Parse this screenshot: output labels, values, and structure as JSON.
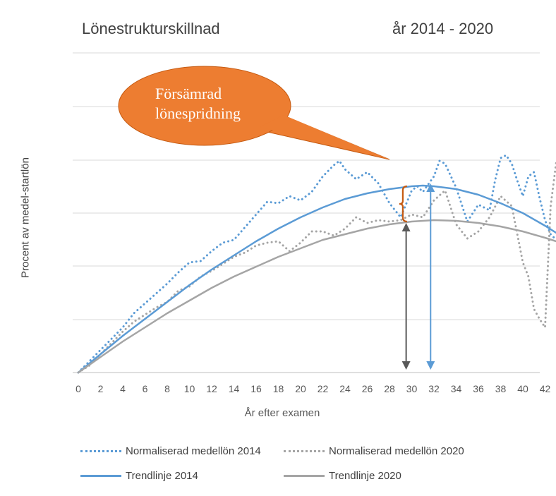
{
  "title_left": "Lönestrukturskillnad",
  "title_right": "år 2014 - 2020",
  "chart_data": {
    "type": "line",
    "xlabel": "År efter examen",
    "ylabel": "Procent av medel-startlön",
    "x_ticks": [
      0,
      2,
      4,
      6,
      8,
      10,
      12,
      14,
      16,
      18,
      20,
      22,
      24,
      26,
      28,
      30,
      32,
      34,
      36,
      38,
      40,
      42
    ],
    "xlim": [
      0,
      43
    ],
    "y_tick_labels": [],
    "grid": "horizontal",
    "legend_position": "bottom",
    "series": [
      {
        "name": "Normaliserad medellön 2014",
        "style": "dotted",
        "color": "#5b9bd5",
        "x": [
          0,
          1,
          2,
          3,
          4,
          5,
          6,
          7,
          8,
          9,
          10,
          11,
          12,
          13,
          14,
          15,
          16,
          17,
          18,
          19,
          20,
          21,
          22,
          23,
          23.5,
          24,
          25,
          26,
          27,
          28,
          29,
          30,
          30.5,
          31,
          32,
          32.5,
          33,
          34,
          35,
          36,
          37,
          37.5,
          38,
          38.5,
          39,
          39.5,
          40,
          40.5,
          41,
          41.5,
          42,
          42.5,
          43
        ],
        "y": [
          0,
          0.8,
          1.6,
          2.4,
          3.2,
          4.2,
          4.9,
          5.6,
          6.3,
          7.1,
          7.8,
          7.9,
          8.6,
          9.2,
          9.4,
          10.3,
          11.2,
          12.1,
          12.0,
          12.5,
          12.2,
          12.8,
          13.9,
          14.7,
          15.0,
          14.4,
          13.7,
          14.2,
          13.4,
          12.0,
          11.0,
          12.9,
          13.2,
          12.8,
          13.9,
          15.0,
          14.8,
          13.1,
          10.7,
          11.9,
          11.5,
          13.6,
          15.2,
          15.4,
          14.8,
          13.6,
          12.5,
          13.9,
          14.2,
          12.4,
          10.8,
          9.8,
          9.4
        ]
      },
      {
        "name": "Normaliserad medellön 2020",
        "style": "dotted",
        "color": "#a5a5a5",
        "x": [
          0,
          1,
          2,
          3,
          4,
          5,
          6,
          7,
          8,
          9,
          10,
          11,
          12,
          13,
          14,
          15,
          16,
          17,
          18,
          19,
          20,
          21,
          22,
          23,
          24,
          25,
          26,
          27,
          28,
          29,
          30,
          31,
          32,
          33,
          34,
          35,
          36,
          37,
          38,
          39,
          40,
          40.5,
          41,
          41.5,
          42,
          42.5,
          43
        ],
        "y": [
          0,
          0.5,
          1.3,
          2.1,
          2.9,
          3.6,
          4.1,
          4.6,
          5.0,
          5.8,
          6.1,
          6.8,
          7.2,
          7.7,
          8.2,
          8.5,
          9.0,
          9.2,
          9.3,
          8.6,
          9.2,
          10.0,
          10.0,
          9.7,
          10.2,
          11.0,
          10.6,
          10.8,
          10.7,
          10.8,
          11.2,
          11.0,
          12.2,
          12.9,
          10.5,
          9.5,
          10.0,
          11.0,
          12.5,
          11.8,
          7.8,
          6.8,
          4.5,
          3.8,
          3.2,
          11.8,
          14.9
        ]
      },
      {
        "name": "Trendlinje 2014",
        "style": "solid",
        "color": "#5b9bd5",
        "x": [
          0,
          2,
          4,
          6,
          8,
          10,
          12,
          14,
          16,
          18,
          20,
          22,
          24,
          26,
          28,
          30,
          31,
          32,
          34,
          36,
          38,
          40,
          42,
          43
        ],
        "y": [
          0,
          1.3,
          2.6,
          3.8,
          5.0,
          6.2,
          7.3,
          8.3,
          9.3,
          10.2,
          11.0,
          11.7,
          12.3,
          12.7,
          13.0,
          13.2,
          13.25,
          13.2,
          13.0,
          12.6,
          12.0,
          11.3,
          10.4,
          9.9
        ]
      },
      {
        "name": "Trendlinje 2020",
        "style": "solid",
        "color": "#a5a5a5",
        "x": [
          0,
          2,
          4,
          6,
          8,
          10,
          12,
          14,
          16,
          18,
          20,
          22,
          24,
          26,
          28,
          30,
          32,
          34,
          36,
          38,
          40,
          42,
          43
        ],
        "y": [
          0,
          1.1,
          2.2,
          3.2,
          4.2,
          5.1,
          6.0,
          6.8,
          7.5,
          8.2,
          8.8,
          9.4,
          9.8,
          10.2,
          10.5,
          10.7,
          10.8,
          10.75,
          10.6,
          10.35,
          10.0,
          9.55,
          9.3
        ]
      }
    ],
    "annotations": [
      {
        "type": "callout",
        "text_line1": "Försämrad",
        "text_line2": "lönespridning",
        "color": "#ed7d31"
      },
      {
        "type": "brace",
        "x": 29.2,
        "y_from": 10.7,
        "y_to": 13.2,
        "color": "#c55a11"
      },
      {
        "type": "double-arrow",
        "x": 29.5,
        "y_from": 0,
        "y_to": 10.8,
        "color": "#595959"
      },
      {
        "type": "double-arrow",
        "x": 31.7,
        "y_from": 0,
        "y_to": 13.6,
        "color": "#5b9bd5"
      }
    ]
  }
}
